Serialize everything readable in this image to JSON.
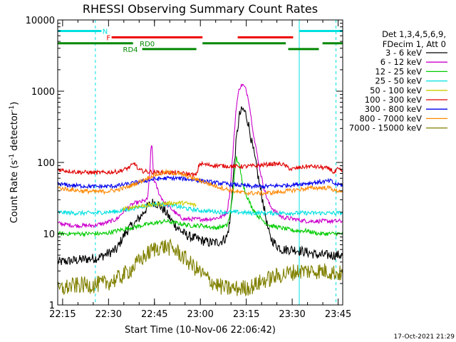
{
  "chart_data": {
    "type": "line",
    "title": "RHESSI Observing Summary Count Rates",
    "xlabel": "Start Time (10-Nov-06 22:06:42)",
    "ylabel_main": "Count Rate (s",
    "ylabel_sup1": "-1",
    "ylabel_mid": " detector",
    "ylabel_sup2": "-1",
    "ylabel_end": ")",
    "x_range_min": [
      6.7,
      99.8
    ],
    "y_scale": "log",
    "y_range": [
      1,
      10000
    ],
    "x_ticks": [
      {
        "min": 8.3,
        "label": "22:15"
      },
      {
        "min": 23.3,
        "label": "22:30"
      },
      {
        "min": 38.3,
        "label": "22:45"
      },
      {
        "min": 53.3,
        "label": "23:00"
      },
      {
        "min": 68.3,
        "label": "23:15"
      },
      {
        "min": 83.3,
        "label": "23:30"
      },
      {
        "min": 98.3,
        "label": "23:45"
      }
    ],
    "y_ticks": [
      {
        "value": 1,
        "label": "1"
      },
      {
        "value": 10,
        "label": "10"
      },
      {
        "value": 100,
        "label": "100"
      },
      {
        "value": 1000,
        "label": "1000"
      },
      {
        "value": 10000,
        "label": "10000"
      }
    ],
    "legend_header": [
      "Det 1,3,4,5,6,9,",
      "FDecim 1, Att 0"
    ],
    "series": [
      {
        "name": "3 - 6 keV",
        "color": "#000000",
        "points": [
          [
            6.7,
            4
          ],
          [
            12,
            4.2
          ],
          [
            20,
            4.6
          ],
          [
            26,
            6
          ],
          [
            28,
            9
          ],
          [
            30,
            12
          ],
          [
            32,
            14
          ],
          [
            34,
            18
          ],
          [
            36,
            24
          ],
          [
            38,
            28
          ],
          [
            40,
            25
          ],
          [
            42,
            20
          ],
          [
            44,
            15
          ],
          [
            46,
            12
          ],
          [
            48,
            10
          ],
          [
            50,
            9
          ],
          [
            52,
            8.5
          ],
          [
            54,
            8
          ],
          [
            56,
            7.5
          ],
          [
            58,
            7.5
          ],
          [
            60,
            7.8
          ],
          [
            62,
            9
          ],
          [
            63,
            15
          ],
          [
            64,
            60
          ],
          [
            65,
            200
          ],
          [
            66,
            450
          ],
          [
            67,
            560
          ],
          [
            68,
            500
          ],
          [
            69,
            350
          ],
          [
            70,
            200
          ],
          [
            71,
            120
          ],
          [
            72,
            70
          ],
          [
            73,
            40
          ],
          [
            74,
            25
          ],
          [
            75,
            14
          ],
          [
            76,
            9
          ],
          [
            78,
            7
          ],
          [
            80,
            6
          ],
          [
            84,
            6
          ],
          [
            88,
            5.5
          ],
          [
            92,
            5
          ],
          [
            96,
            5
          ],
          [
            99.8,
            5
          ]
        ]
      },
      {
        "name": "6 - 12 keV",
        "color": "#cc00cc",
        "points": [
          [
            6.7,
            14
          ],
          [
            12,
            13
          ],
          [
            18,
            13
          ],
          [
            22,
            14
          ],
          [
            26,
            16
          ],
          [
            28,
            20
          ],
          [
            30,
            24
          ],
          [
            32,
            27
          ],
          [
            34,
            28
          ],
          [
            36,
            30
          ],
          [
            36.8,
            70
          ],
          [
            37.2,
            190
          ],
          [
            37.6,
            150
          ],
          [
            38,
            60
          ],
          [
            40,
            35
          ],
          [
            42,
            26
          ],
          [
            44,
            22
          ],
          [
            46,
            18
          ],
          [
            48,
            16
          ],
          [
            50,
            16
          ],
          [
            52,
            16
          ],
          [
            56,
            16
          ],
          [
            60,
            17
          ],
          [
            62,
            20
          ],
          [
            63,
            40
          ],
          [
            64,
            150
          ],
          [
            65,
            600
          ],
          [
            66,
            1100
          ],
          [
            67,
            1250
          ],
          [
            68,
            1100
          ],
          [
            69,
            800
          ],
          [
            70,
            400
          ],
          [
            71,
            200
          ],
          [
            72,
            120
          ],
          [
            73,
            70
          ],
          [
            74,
            45
          ],
          [
            75,
            32
          ],
          [
            76,
            25
          ],
          [
            78,
            20
          ],
          [
            80,
            17
          ],
          [
            84,
            16
          ],
          [
            88,
            15
          ],
          [
            92,
            15
          ],
          [
            96,
            15
          ],
          [
            99.8,
            15
          ]
        ]
      },
      {
        "name": "12 - 25 keV",
        "color": "#00cc00",
        "points": [
          [
            6.7,
            10
          ],
          [
            12,
            10
          ],
          [
            18,
            10
          ],
          [
            22,
            10
          ],
          [
            26,
            11
          ],
          [
            30,
            12
          ],
          [
            34,
            13
          ],
          [
            38,
            14
          ],
          [
            42,
            15
          ],
          [
            46,
            14
          ],
          [
            50,
            13
          ],
          [
            54,
            13
          ],
          [
            58,
            12
          ],
          [
            62,
            13
          ],
          [
            63,
            18
          ],
          [
            64,
            40
          ],
          [
            65,
            120
          ],
          [
            66,
            90
          ],
          [
            67,
            55
          ],
          [
            68,
            38
          ],
          [
            69,
            30
          ],
          [
            70,
            24
          ],
          [
            72,
            18
          ],
          [
            74,
            15
          ],
          [
            76,
            13
          ],
          [
            80,
            12
          ],
          [
            84,
            11
          ],
          [
            88,
            11
          ],
          [
            92,
            10
          ],
          [
            96,
            10
          ],
          [
            99.8,
            10
          ]
        ]
      },
      {
        "name": "25 - 50 keV",
        "color": "#00e0e0",
        "points": [
          [
            6.7,
            20
          ],
          [
            12,
            19.5
          ],
          [
            18,
            19.5
          ],
          [
            22,
            20
          ],
          [
            26,
            20.5
          ],
          [
            30,
            22
          ],
          [
            34,
            24
          ],
          [
            38,
            26
          ],
          [
            42,
            26
          ],
          [
            46,
            24
          ],
          [
            50,
            22
          ],
          [
            54,
            21
          ],
          [
            58,
            20.5
          ],
          [
            62,
            20
          ],
          [
            66,
            20
          ],
          [
            70,
            19.5
          ],
          [
            74,
            19.5
          ],
          [
            78,
            19.5
          ],
          [
            82,
            19.5
          ],
          [
            86,
            19.5
          ],
          [
            90,
            19.5
          ],
          [
            94,
            19.5
          ],
          [
            99.8,
            19.5
          ]
        ]
      },
      {
        "name": "50 - 100 keV",
        "color": "#cccc00",
        "points": [
          [
            28,
            22
          ],
          [
            32,
            24
          ],
          [
            36,
            25
          ],
          [
            40,
            26
          ],
          [
            44,
            27
          ],
          [
            48,
            27
          ],
          [
            50,
            26
          ],
          [
            52,
            25
          ]
        ]
      },
      {
        "name": "100 - 300 keV",
        "color": "#e00000",
        "points": [
          [
            6.7,
            80
          ],
          [
            10,
            76
          ],
          [
            14,
            73
          ],
          [
            18,
            72
          ],
          [
            22,
            72
          ],
          [
            26,
            74
          ],
          [
            28,
            78
          ],
          [
            30,
            85
          ],
          [
            32,
            98
          ],
          [
            33,
            78
          ],
          [
            36,
            74
          ],
          [
            40,
            72
          ],
          [
            44,
            72
          ],
          [
            48,
            70
          ],
          [
            52,
            66
          ],
          [
            53,
            96
          ],
          [
            56,
            92
          ],
          [
            60,
            90
          ],
          [
            64,
            88
          ],
          [
            68,
            88
          ],
          [
            72,
            90
          ],
          [
            76,
            95
          ],
          [
            80,
            95
          ],
          [
            83,
            80
          ],
          [
            86,
            85
          ],
          [
            88,
            88
          ],
          [
            90,
            88
          ],
          [
            92,
            86
          ],
          [
            94,
            84
          ],
          [
            96,
            80
          ],
          [
            97,
            70
          ],
          [
            98,
            80
          ],
          [
            99.8,
            76
          ]
        ]
      },
      {
        "name": "300 - 800 keV",
        "color": "#0000ee",
        "points": [
          [
            6.7,
            50
          ],
          [
            10,
            48
          ],
          [
            14,
            47
          ],
          [
            18,
            46
          ],
          [
            22,
            46
          ],
          [
            26,
            47
          ],
          [
            30,
            50
          ],
          [
            34,
            54
          ],
          [
            38,
            58
          ],
          [
            42,
            60
          ],
          [
            46,
            60
          ],
          [
            50,
            58
          ],
          [
            54,
            55
          ],
          [
            58,
            52
          ],
          [
            62,
            50
          ],
          [
            66,
            48
          ],
          [
            70,
            46
          ],
          [
            74,
            46
          ],
          [
            78,
            47
          ],
          [
            82,
            48
          ],
          [
            86,
            50
          ],
          [
            90,
            52
          ],
          [
            94,
            54
          ],
          [
            96,
            55
          ],
          [
            97,
            50
          ],
          [
            99.8,
            48
          ]
        ]
      },
      {
        "name": "800 - 7000 keV",
        "color": "#ff8800",
        "points": [
          [
            6.7,
            44
          ],
          [
            10,
            42
          ],
          [
            14,
            40
          ],
          [
            18,
            39
          ],
          [
            22,
            39
          ],
          [
            26,
            41
          ],
          [
            30,
            46
          ],
          [
            34,
            55
          ],
          [
            38,
            66
          ],
          [
            42,
            73
          ],
          [
            46,
            70
          ],
          [
            50,
            62
          ],
          [
            54,
            54
          ],
          [
            58,
            47
          ],
          [
            62,
            42
          ],
          [
            66,
            38
          ],
          [
            70,
            37
          ],
          [
            74,
            37
          ],
          [
            78,
            38
          ],
          [
            82,
            40
          ],
          [
            86,
            42
          ],
          [
            90,
            44
          ],
          [
            94,
            44
          ],
          [
            96,
            44
          ],
          [
            97,
            40
          ],
          [
            99.8,
            40
          ]
        ]
      },
      {
        "name": "7000 - 15000 keV",
        "color": "#808000",
        "points": [
          [
            6.7,
            1.6
          ],
          [
            10,
            1.8
          ],
          [
            14,
            1.9
          ],
          [
            18,
            1.9
          ],
          [
            22,
            2.0
          ],
          [
            26,
            2.3
          ],
          [
            28,
            2.6
          ],
          [
            30,
            3.0
          ],
          [
            32,
            3.6
          ],
          [
            34,
            4.4
          ],
          [
            36,
            5.2
          ],
          [
            38,
            6.0
          ],
          [
            40,
            6.5
          ],
          [
            42,
            6.6
          ],
          [
            44,
            6.2
          ],
          [
            46,
            5.5
          ],
          [
            48,
            4.6
          ],
          [
            50,
            3.8
          ],
          [
            52,
            3.2
          ],
          [
            54,
            2.7
          ],
          [
            56,
            2.3
          ],
          [
            58,
            2.0
          ],
          [
            60,
            1.8
          ],
          [
            62,
            1.7
          ],
          [
            66,
            1.7
          ],
          [
            70,
            1.8
          ],
          [
            74,
            2.2
          ],
          [
            78,
            2.5
          ],
          [
            82,
            2.8
          ],
          [
            86,
            3.0
          ],
          [
            90,
            3.0
          ],
          [
            94,
            3.0
          ],
          [
            96,
            2.9
          ],
          [
            98,
            2.8
          ],
          [
            99.8,
            2.7
          ]
        ]
      }
    ],
    "vlines": [
      {
        "min": 6.7,
        "style": "solid"
      },
      {
        "min": 19.0,
        "style": "dashed"
      },
      {
        "min": 85.6,
        "style": "solid"
      },
      {
        "min": 97.6,
        "style": "dashed"
      }
    ],
    "status_bars": [
      {
        "name": "N",
        "color": "#00e0e0",
        "level": 7000,
        "segments": [
          [
            6.7,
            21.0
          ],
          [
            85.6,
            99.8
          ]
        ],
        "label": "N",
        "label_at_min": 21.3
      },
      {
        "name": "F",
        "color": "#ee0000",
        "level": 5700,
        "segments": [
          [
            24.3,
            54.0
          ],
          [
            65.5,
            83.6
          ]
        ],
        "label": "F",
        "label_at_min": 22.6
      },
      {
        "name": "RD0",
        "color": "#008800",
        "level": 4700,
        "segments": [
          [
            6.7,
            31.3
          ],
          [
            54.0,
            81.2
          ],
          [
            93.2,
            99.8
          ]
        ],
        "label": "RD0",
        "label_at_min": 33.5
      },
      {
        "name": "RD4",
        "color": "#008800",
        "level": 3900,
        "segments": [
          [
            34.3,
            52.0
          ],
          [
            82.0,
            92.0
          ]
        ],
        "label": "RD4",
        "label_at_min": 28.0
      }
    ],
    "timestamp": "17-Oct-2021 21:29"
  }
}
